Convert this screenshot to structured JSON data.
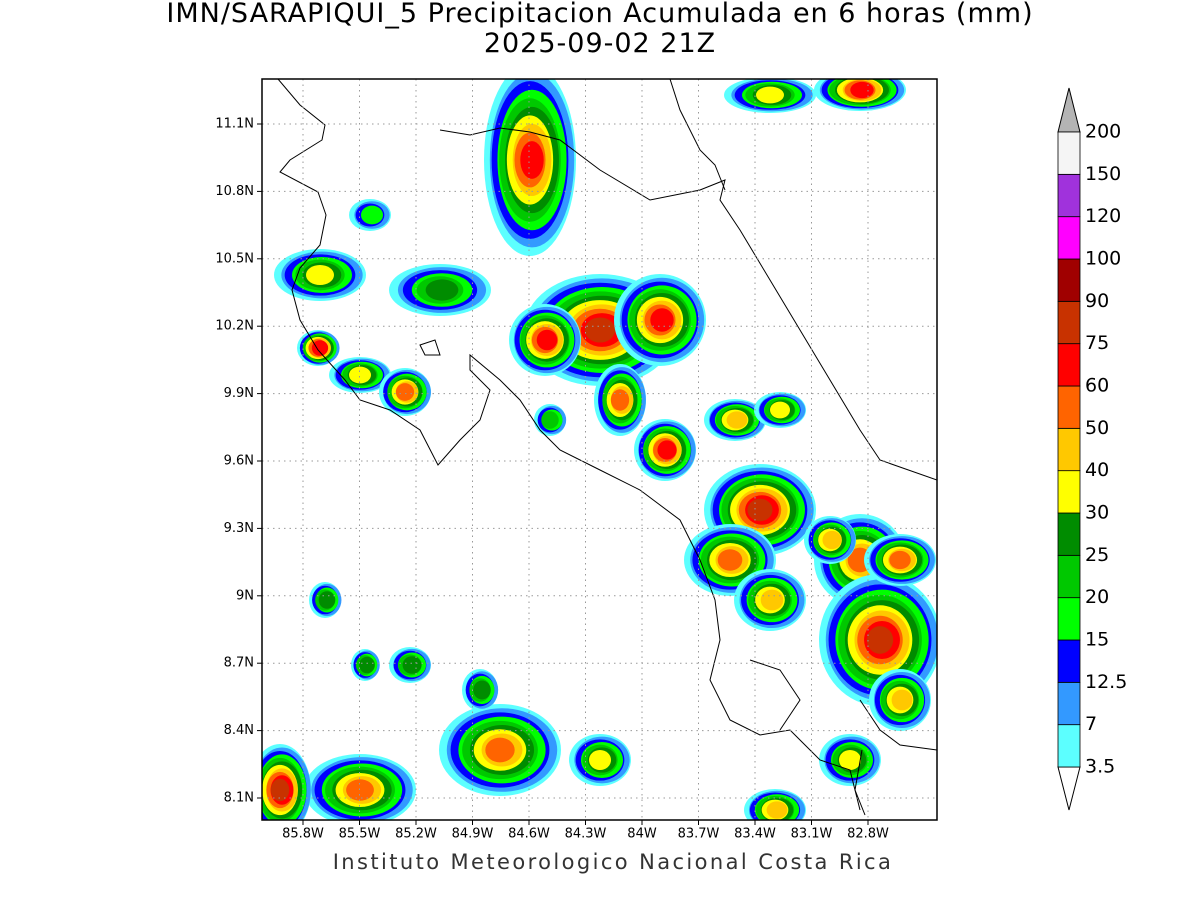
{
  "map": {
    "title": "IMN/SARAPIQUI_5 Precipitacion Acumulada en 6 horas (mm)",
    "subtitle": "2025-09-02 21Z",
    "lon_labels": [
      "85.8W",
      "85.5W",
      "85.2W",
      "84.9W",
      "84.6W",
      "84.3W",
      "84W",
      "83.7W",
      "83.4W",
      "83.1W",
      "82.8W"
    ],
    "lat_labels": [
      "11.1N",
      "10.8N",
      "10.5N",
      "10.2N",
      "9.9N",
      "9.6N",
      "9.3N",
      "9N",
      "8.7N",
      "8.4N",
      "8.1N"
    ],
    "colorbar": {
      "levels": [
        3.5,
        7,
        12.5,
        15,
        20,
        25,
        30,
        40,
        50,
        60,
        75,
        90,
        100,
        120,
        150,
        200
      ],
      "band_colors": [
        "#5cffff",
        "#3399ff",
        "#0000ff",
        "#00ff00",
        "#00c800",
        "#008c00",
        "#ffff00",
        "#ffc800",
        "#ff6400",
        "#ff0000",
        "#c83200",
        "#a00000",
        "#ff00ff",
        "#a032dc",
        "#f5f5f5"
      ],
      "below_color": "#ffffff",
      "above_color": "#b4b4b4"
    },
    "footer": "Instituto Meteorologico Nacional Costa Rica"
  }
}
